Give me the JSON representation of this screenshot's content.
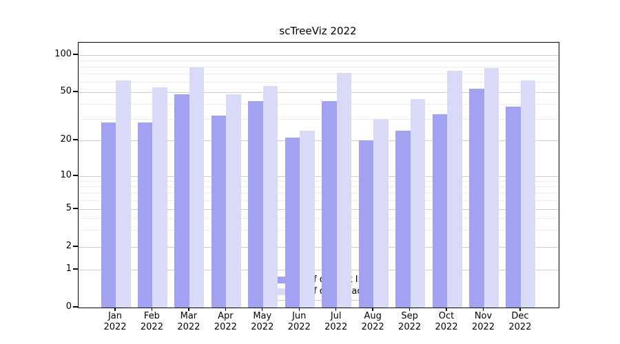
{
  "chart_data": {
    "type": "bar",
    "title": "scTreeViz 2022",
    "categories": [
      "Jan",
      "Feb",
      "Mar",
      "Apr",
      "May",
      "Jun",
      "Jul",
      "Aug",
      "Sep",
      "Oct",
      "Nov",
      "Dec"
    ],
    "x_tick_year": "2022",
    "series": [
      {
        "name": "Nb of distinct IPs",
        "color": "#a2a2f3",
        "values": [
          28,
          28,
          48,
          32,
          42,
          21,
          42,
          20,
          24,
          33,
          53,
          38
        ]
      },
      {
        "name": "Nb of downloads",
        "color": "#d9daf8",
        "values": [
          62,
          55,
          79,
          48,
          56,
          24,
          72,
          30,
          44,
          74,
          78,
          62
        ]
      }
    ],
    "xlabel": "",
    "ylabel": "",
    "y_scale": "symlog",
    "y_major_ticks": [
      0,
      1,
      2,
      5,
      10,
      20,
      50,
      100
    ],
    "y_minor_ticks": [
      3,
      4,
      6,
      7,
      8,
      9,
      30,
      40,
      60,
      70,
      80,
      90
    ],
    "ylim": [
      0,
      125
    ],
    "grid": true,
    "legend_position": "lower center"
  }
}
